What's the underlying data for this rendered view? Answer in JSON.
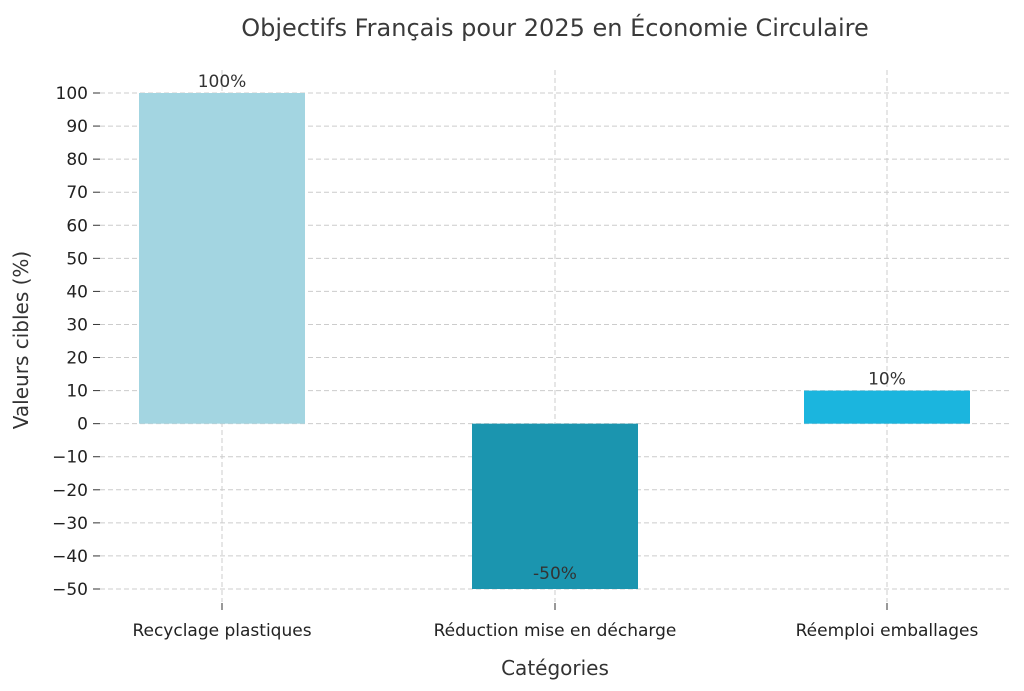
{
  "chart_data": {
    "type": "bar",
    "title": "Objectifs Français pour 2025 en Économie Circulaire",
    "xlabel": "Catégories",
    "ylabel": "Valeurs cibles (%)",
    "categories": [
      "Recyclage plastiques",
      "Réduction mise en décharge",
      "Réemploi emballages"
    ],
    "values": [
      100,
      -50,
      10
    ],
    "data_labels": [
      "100%",
      "-50%",
      "10%"
    ],
    "colors": [
      "#a3d5e1",
      "#1b95af",
      "#1bb5de"
    ],
    "ylim": [
      -50,
      100
    ],
    "yticks": [
      100,
      90,
      80,
      70,
      60,
      50,
      40,
      30,
      20,
      10,
      0,
      -10,
      -20,
      -30,
      -40,
      -50
    ],
    "ytick_labels": [
      "100",
      "90",
      "80",
      "70",
      "60",
      "50",
      "40",
      "30",
      "20",
      "10",
      "0",
      "−10",
      "−20",
      "−30",
      "−40",
      "−50"
    ],
    "grid": true,
    "legend": false
  }
}
